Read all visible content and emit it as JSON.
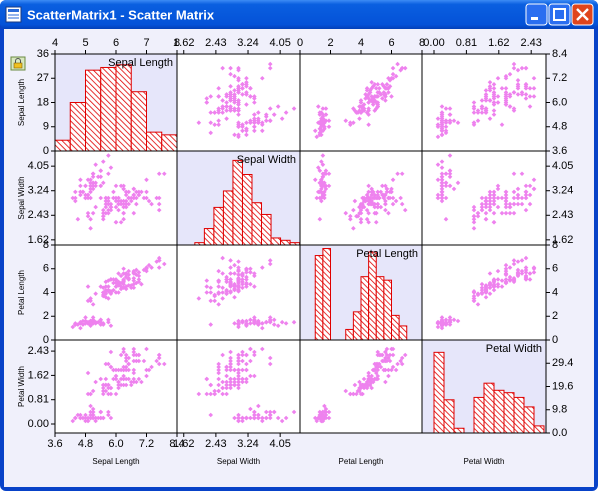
{
  "window": {
    "title": "ScatterMatrix1 - Scatter Matrix"
  },
  "chart_data": {
    "type": "scatter_matrix",
    "variables": [
      "Sepal Length",
      "Sepal Width",
      "Petal Length",
      "Petal Width"
    ],
    "values": [
      [
        5.1,
        4.9,
        4.7,
        4.6,
        5.0,
        5.4,
        4.6,
        5.0,
        4.4,
        4.9,
        5.4,
        4.8,
        4.8,
        4.3,
        5.8,
        5.7,
        5.4,
        5.1,
        5.7,
        5.1,
        5.4,
        5.1,
        4.6,
        5.1,
        4.8,
        5.0,
        5.0,
        5.2,
        5.2,
        4.7,
        4.8,
        5.4,
        5.2,
        5.5,
        4.9,
        5.0,
        5.5,
        4.9,
        4.4,
        5.1,
        5.0,
        4.5,
        4.4,
        5.0,
        5.1,
        4.8,
        5.1,
        4.6,
        5.3,
        5.0,
        7.0,
        6.4,
        6.9,
        5.5,
        6.5,
        5.7,
        6.3,
        4.9,
        6.6,
        5.2,
        5.0,
        5.9,
        6.0,
        6.1,
        5.6,
        6.7,
        5.6,
        5.8,
        6.2,
        5.6,
        5.9,
        6.1,
        6.3,
        6.1,
        6.4,
        6.6,
        6.8,
        6.7,
        6.0,
        5.7,
        5.5,
        5.5,
        5.8,
        6.0,
        5.4,
        6.0,
        6.7,
        6.3,
        5.6,
        5.5,
        5.5,
        6.1,
        5.8,
        5.0,
        5.6,
        5.7,
        5.7,
        6.2,
        5.1,
        5.7,
        6.3,
        5.8,
        7.1,
        6.3,
        6.5,
        7.6,
        4.9,
        7.3,
        6.7,
        7.2,
        6.5,
        6.4,
        6.8,
        5.7,
        5.8,
        6.4,
        6.5,
        7.7,
        7.7,
        6.0,
        6.9,
        5.6,
        7.7,
        6.3,
        6.7,
        7.2,
        6.2,
        6.1,
        6.4,
        7.2,
        7.4,
        7.9,
        6.4,
        6.3,
        6.1,
        7.7,
        6.3,
        6.4,
        6.0,
        6.9,
        6.7,
        6.9,
        5.8,
        6.8,
        6.7,
        6.7,
        6.3,
        6.5,
        6.2,
        5.9
      ],
      [
        3.5,
        3.0,
        3.2,
        3.1,
        3.6,
        3.9,
        3.4,
        3.4,
        2.9,
        3.1,
        3.7,
        3.4,
        3.0,
        3.0,
        4.0,
        4.4,
        3.9,
        3.5,
        3.8,
        3.8,
        3.4,
        3.7,
        3.6,
        3.3,
        3.4,
        3.0,
        3.4,
        3.5,
        3.4,
        3.2,
        3.1,
        3.4,
        4.1,
        4.2,
        3.1,
        3.2,
        3.5,
        3.6,
        3.0,
        3.4,
        3.5,
        2.3,
        3.2,
        3.5,
        3.8,
        3.0,
        3.8,
        3.2,
        3.7,
        3.3,
        3.2,
        3.2,
        3.1,
        2.3,
        2.8,
        2.8,
        3.3,
        2.4,
        2.9,
        2.7,
        2.0,
        3.0,
        2.2,
        2.9,
        2.9,
        3.1,
        3.0,
        2.7,
        2.2,
        2.5,
        3.2,
        2.8,
        2.5,
        2.8,
        2.9,
        3.0,
        2.8,
        3.0,
        2.9,
        2.6,
        2.4,
        2.4,
        2.7,
        2.7,
        3.0,
        3.4,
        3.1,
        2.3,
        3.0,
        2.5,
        2.6,
        3.0,
        2.6,
        2.3,
        2.7,
        3.0,
        2.9,
        2.9,
        2.5,
        2.8,
        3.3,
        2.7,
        3.0,
        2.9,
        3.0,
        3.0,
        2.5,
        2.9,
        2.5,
        3.6,
        3.2,
        2.7,
        3.0,
        2.5,
        2.8,
        3.2,
        3.0,
        3.8,
        2.6,
        2.2,
        3.2,
        2.8,
        2.8,
        2.7,
        3.3,
        3.2,
        2.8,
        3.0,
        2.8,
        3.0,
        2.8,
        3.8,
        2.8,
        2.8,
        2.6,
        3.0,
        3.4,
        3.1,
        3.0,
        3.1,
        3.1,
        3.1,
        2.7,
        3.2,
        3.3,
        3.0,
        2.5,
        3.0,
        3.4,
        3.0
      ],
      [
        1.4,
        1.4,
        1.3,
        1.5,
        1.4,
        1.7,
        1.4,
        1.5,
        1.4,
        1.5,
        1.5,
        1.6,
        1.4,
        1.1,
        1.2,
        1.5,
        1.3,
        1.4,
        1.7,
        1.5,
        1.7,
        1.5,
        1.0,
        1.7,
        1.9,
        1.6,
        1.6,
        1.5,
        1.4,
        1.6,
        1.6,
        1.5,
        1.5,
        1.4,
        1.5,
        1.2,
        1.3,
        1.4,
        1.3,
        1.5,
        1.3,
        1.3,
        1.3,
        1.6,
        1.9,
        1.4,
        1.6,
        1.4,
        1.5,
        1.4,
        4.7,
        4.5,
        4.9,
        4.0,
        4.6,
        4.5,
        4.7,
        3.3,
        4.6,
        3.9,
        3.5,
        4.2,
        4.0,
        4.7,
        3.6,
        4.4,
        4.5,
        4.1,
        4.5,
        3.9,
        4.8,
        4.0,
        4.9,
        4.7,
        4.3,
        4.4,
        4.8,
        5.0,
        4.5,
        3.5,
        3.8,
        3.7,
        3.9,
        5.1,
        4.5,
        4.5,
        4.7,
        4.4,
        4.1,
        4.0,
        4.4,
        4.6,
        4.0,
        3.3,
        4.2,
        4.2,
        4.2,
        4.3,
        3.0,
        4.1,
        6.0,
        5.1,
        5.9,
        5.6,
        5.8,
        6.6,
        4.5,
        6.3,
        5.8,
        6.1,
        5.1,
        5.3,
        5.5,
        5.0,
        5.1,
        5.3,
        5.5,
        6.7,
        6.9,
        5.0,
        5.7,
        4.9,
        6.7,
        4.9,
        5.7,
        6.0,
        4.8,
        4.9,
        5.6,
        5.8,
        6.1,
        6.4,
        5.6,
        5.1,
        5.6,
        6.1,
        5.6,
        5.5,
        4.8,
        5.4,
        5.6,
        5.1,
        5.1,
        5.9,
        5.7,
        5.2,
        5.0,
        5.2,
        5.4,
        5.1
      ],
      [
        0.2,
        0.2,
        0.2,
        0.2,
        0.2,
        0.4,
        0.3,
        0.2,
        0.2,
        0.1,
        0.2,
        0.2,
        0.1,
        0.1,
        0.2,
        0.4,
        0.4,
        0.3,
        0.3,
        0.3,
        0.2,
        0.4,
        0.2,
        0.5,
        0.2,
        0.2,
        0.4,
        0.2,
        0.2,
        0.2,
        0.2,
        0.4,
        0.1,
        0.2,
        0.2,
        0.2,
        0.2,
        0.1,
        0.2,
        0.2,
        0.3,
        0.3,
        0.2,
        0.6,
        0.4,
        0.3,
        0.2,
        0.2,
        0.2,
        0.2,
        1.4,
        1.5,
        1.5,
        1.3,
        1.5,
        1.3,
        1.6,
        1.0,
        1.3,
        1.4,
        1.0,
        1.5,
        1.0,
        1.4,
        1.3,
        1.4,
        1.5,
        1.0,
        1.5,
        1.1,
        1.8,
        1.3,
        1.5,
        1.2,
        1.3,
        1.4,
        1.4,
        1.7,
        1.5,
        1.0,
        1.1,
        1.0,
        1.2,
        1.6,
        1.5,
        1.6,
        1.5,
        1.3,
        1.3,
        1.3,
        1.2,
        1.4,
        1.2,
        1.0,
        1.3,
        1.2,
        1.3,
        1.3,
        1.1,
        1.3,
        2.5,
        1.9,
        2.1,
        1.8,
        2.2,
        2.1,
        1.7,
        1.8,
        1.8,
        2.5,
        2.0,
        1.9,
        2.1,
        2.0,
        2.4,
        2.3,
        1.8,
        2.2,
        2.3,
        1.5,
        2.3,
        2.0,
        2.0,
        1.8,
        2.1,
        1.8,
        1.8,
        1.8,
        2.1,
        1.6,
        1.9,
        2.0,
        2.2,
        1.5,
        1.4,
        2.3,
        2.4,
        1.8,
        1.8,
        2.1,
        2.4,
        2.3,
        1.9,
        2.3,
        2.5,
        2.3,
        1.9,
        2.0,
        2.3,
        1.8
      ]
    ],
    "lims": [
      [
        3.6,
        8.4
      ],
      [
        1.45,
        4.55
      ],
      [
        0,
        8
      ],
      [
        -0.3,
        2.8
      ]
    ],
    "ticks": [
      [
        3.6,
        4.8,
        {
          "value": 6,
          "label": "6.0"
        },
        7.2,
        8.4
      ],
      [
        1.62,
        2.43,
        3.24,
        4.05
      ],
      [
        0,
        2,
        4,
        6,
        8
      ],
      [
        {
          "value": 0,
          "label": "0.00"
        },
        0.81,
        1.62,
        2.43
      ]
    ],
    "histograms": [
      {
        "bins": [
          4,
          4.5,
          5,
          5.5,
          6,
          6.5,
          7,
          7.5,
          8
        ],
        "counts": [
          4,
          18,
          30,
          31,
          32,
          22,
          7,
          6
        ],
        "xlim": [
          4,
          8
        ],
        "xticks": [
          4,
          5,
          6,
          7,
          8
        ],
        "ylim": [
          0,
          36
        ],
        "yticks": [
          0,
          9,
          18,
          27,
          36
        ]
      },
      {
        "bins": [
          1.9,
          2.14,
          2.38,
          2.62,
          2.86,
          3.1,
          3.34,
          3.58,
          3.82,
          4.06,
          4.3,
          4.54
        ],
        "counts": [
          1,
          7,
          16,
          23,
          36,
          30,
          18,
          13,
          3,
          2,
          1
        ],
        "ylim": [
          0,
          40
        ]
      },
      {
        "bins": [
          1,
          1.5,
          2,
          2.5,
          3,
          3.5,
          4,
          4.5,
          5,
          5.5,
          6,
          6.5,
          7
        ],
        "counts": [
          24,
          26,
          0,
          0,
          3,
          8,
          18,
          25,
          18,
          17,
          7,
          4
        ],
        "ylim": [
          0,
          27
        ]
      },
      {
        "bins": [
          0,
          0.25,
          0.5,
          0.75,
          1,
          1.25,
          1.5,
          1.75,
          2,
          2.25,
          2.5,
          2.75
        ],
        "counts": [
          34,
          14,
          2,
          0,
          15,
          21,
          18,
          17,
          15,
          11,
          3
        ],
        "ylim": [
          0,
          39.2
        ],
        "yticks": [
          {
            "value": 0,
            "label": "0.0"
          },
          9.8,
          19.6,
          29.4
        ]
      }
    ],
    "point_color": "#ee82ee",
    "bar_color": "#e00000",
    "diag_background": "#e6e6fa"
  }
}
